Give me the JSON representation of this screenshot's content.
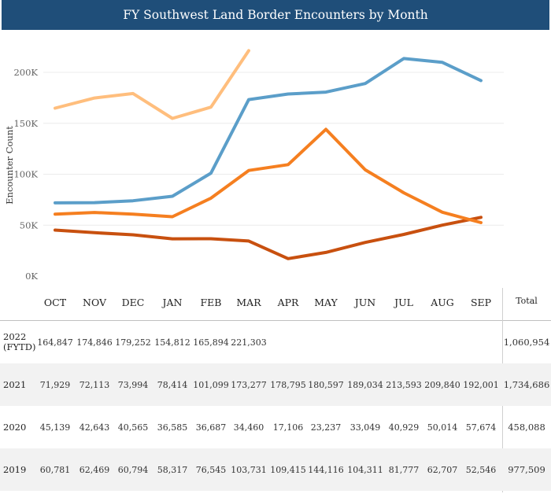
{
  "title": "FY Southwest Land Border Encounters by Month",
  "chart_data": {
    "type": "line",
    "categories": [
      "OCT",
      "NOV",
      "DEC",
      "JAN",
      "FEB",
      "MAR",
      "APR",
      "MAY",
      "JUN",
      "JUL",
      "AUG",
      "SEP"
    ],
    "ylabel": "Encounter Count",
    "ylim": [
      0,
      225000
    ],
    "yticks": [
      0,
      50000,
      100000,
      150000,
      200000
    ],
    "ytick_labels": [
      "0K",
      "50K",
      "100K",
      "150K",
      "200K"
    ],
    "grid": "horizontal",
    "series": [
      {
        "name": "2022 (FYTD)",
        "color": "#ffbe7d",
        "values": [
          164847,
          174846,
          179252,
          154812,
          165894,
          221303,
          null,
          null,
          null,
          null,
          null,
          null
        ]
      },
      {
        "name": "2021",
        "color": "#5b9ec9",
        "values": [
          71929,
          72113,
          73994,
          78414,
          101099,
          173277,
          178795,
          180597,
          189034,
          213593,
          209840,
          192001
        ]
      },
      {
        "name": "2020",
        "color": "#c8500f",
        "values": [
          45139,
          42643,
          40565,
          36585,
          36687,
          34460,
          17106,
          23237,
          33049,
          40929,
          50014,
          57674
        ]
      },
      {
        "name": "2019",
        "color": "#f57f20",
        "values": [
          60781,
          62469,
          60794,
          58317,
          76545,
          103731,
          109415,
          144116,
          104311,
          81777,
          62707,
          52546
        ]
      }
    ]
  },
  "table": {
    "total_header": "Total",
    "rows": [
      {
        "label": "2022\n(FYTD)",
        "cells": [
          "164,847",
          "174,846",
          "179,252",
          "154,812",
          "165,894",
          "221,303",
          "",
          "",
          "",
          "",
          "",
          ""
        ],
        "total": "1,060,954"
      },
      {
        "label": "2021",
        "cells": [
          "71,929",
          "72,113",
          "73,994",
          "78,414",
          "101,099",
          "173,277",
          "178,795",
          "180,597",
          "189,034",
          "213,593",
          "209,840",
          "192,001"
        ],
        "total": "1,734,686"
      },
      {
        "label": "2020",
        "cells": [
          "45,139",
          "42,643",
          "40,565",
          "36,585",
          "36,687",
          "34,460",
          "17,106",
          "23,237",
          "33,049",
          "40,929",
          "50,014",
          "57,674"
        ],
        "total": "458,088"
      },
      {
        "label": "2019",
        "cells": [
          "60,781",
          "62,469",
          "60,794",
          "58,317",
          "76,545",
          "103,731",
          "109,415",
          "144,116",
          "104,311",
          "81,777",
          "62,707",
          "52,546"
        ],
        "total": "977,509"
      }
    ]
  }
}
